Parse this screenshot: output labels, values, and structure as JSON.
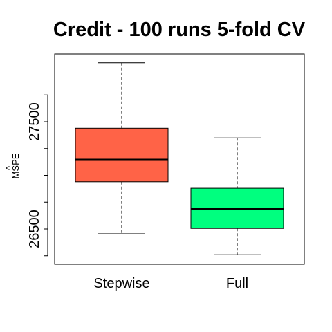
{
  "chart_data": {
    "type": "boxplot",
    "title": "Credit - 100 runs 5-fold CV",
    "xlabel": "",
    "ylabel": "MSPE",
    "ylabel_accent": "^",
    "ylim": [
      26200,
      28050
    ],
    "yticks": [
      26500,
      27500
    ],
    "grid": false,
    "categories": [
      "Stepwise",
      "Full"
    ],
    "boxes": [
      {
        "category": "Stepwise",
        "min": 26455,
        "q1": 26940,
        "median": 27145,
        "q3": 27440,
        "max": 28050,
        "color": "#FF6347"
      },
      {
        "category": "Full",
        "min": 26260,
        "q1": 26505,
        "median": 26685,
        "q3": 26880,
        "max": 27350,
        "color": "#00FF7F"
      }
    ]
  }
}
